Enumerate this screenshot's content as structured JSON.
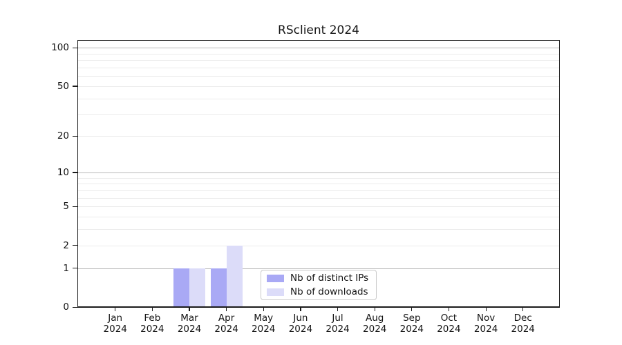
{
  "figure": {
    "background": "#ffffff",
    "axis_color": "#1a1a1a",
    "tick_label_color": "#141414"
  },
  "chart_data": {
    "type": "bar",
    "title": "RSclient 2024",
    "categories": [
      "Jan",
      "Feb",
      "Mar",
      "Apr",
      "May",
      "Jun",
      "Jul",
      "Aug",
      "Sep",
      "Oct",
      "Nov",
      "Dec"
    ],
    "x_year_line": "2024",
    "series": [
      {
        "name": "Nb of distinct IPs",
        "color": "#a9a9f5",
        "values": [
          0,
          0,
          1,
          1,
          0,
          0,
          0,
          0,
          0,
          0,
          0,
          0
        ]
      },
      {
        "name": "Nb of downloads",
        "color": "#dcdcf9",
        "values": [
          0,
          0,
          1,
          2,
          0,
          0,
          0,
          0,
          0,
          0,
          0,
          0
        ]
      }
    ],
    "xlabel": "",
    "ylabel": "",
    "y_ticks": [
      0,
      1,
      2,
      5,
      10,
      20,
      50,
      100
    ],
    "y_scale": "log1p",
    "ylim": [
      0,
      115
    ],
    "grid": {
      "minor_values": [
        2,
        3,
        4,
        5,
        6,
        7,
        8,
        9,
        20,
        30,
        40,
        50,
        60,
        70,
        80,
        90
      ],
      "major_values": [
        1,
        10,
        100
      ],
      "minor_color": "#ebebeb",
      "major_color": "#b8b8b8"
    },
    "legend": {
      "position": "lower center-right",
      "entries": [
        "Nb of distinct IPs",
        "Nb of downloads"
      ]
    }
  }
}
